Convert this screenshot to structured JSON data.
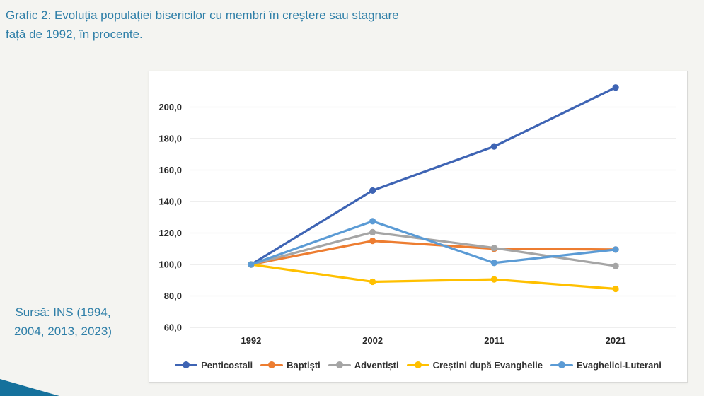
{
  "page": {
    "background_color": "#f4f4f1",
    "accent_text_color": "#2f7fa8",
    "corner_triangle_color": "#15719c"
  },
  "header": {
    "title_line1": "Grafic 2: Evoluția populației bisericilor cu membri în creștere sau stagnare",
    "title_line2": "față de 1992, în procente."
  },
  "source_note": {
    "line1": "Sursă: INS (1994,",
    "line2": "2004, 2013, 2023)"
  },
  "chart_data": {
    "type": "line",
    "title": "",
    "categories": [
      "1992",
      "2002",
      "2011",
      "2021"
    ],
    "series": [
      {
        "name": "Penticostali",
        "color": "#3e64b4",
        "values": [
          100.0,
          147.0,
          175.0,
          212.5
        ]
      },
      {
        "name": "Baptiști",
        "color": "#ed7d31",
        "values": [
          100.0,
          115.0,
          110.0,
          109.5
        ]
      },
      {
        "name": "Adventiști",
        "color": "#a5a5a5",
        "values": [
          100.0,
          120.5,
          110.5,
          99.0
        ]
      },
      {
        "name": "Creștini după Evanghelie",
        "color": "#ffc000",
        "values": [
          100.0,
          89.0,
          90.5,
          84.5
        ]
      },
      {
        "name": "Evaghelici-Luterani",
        "color": "#5b9bd5",
        "values": [
          100.0,
          127.5,
          101.0,
          109.5
        ]
      }
    ],
    "xlabel": "",
    "ylabel": "",
    "ylim": [
      60,
      220
    ],
    "yticks": [
      60,
      80,
      100,
      120,
      140,
      160,
      180,
      200
    ],
    "ytick_labels": [
      "60,0",
      "80,0",
      "100,0",
      "120,0",
      "140,0",
      "160,0",
      "180,0",
      "200,0"
    ],
    "grid": true,
    "legend_position": "bottom"
  }
}
